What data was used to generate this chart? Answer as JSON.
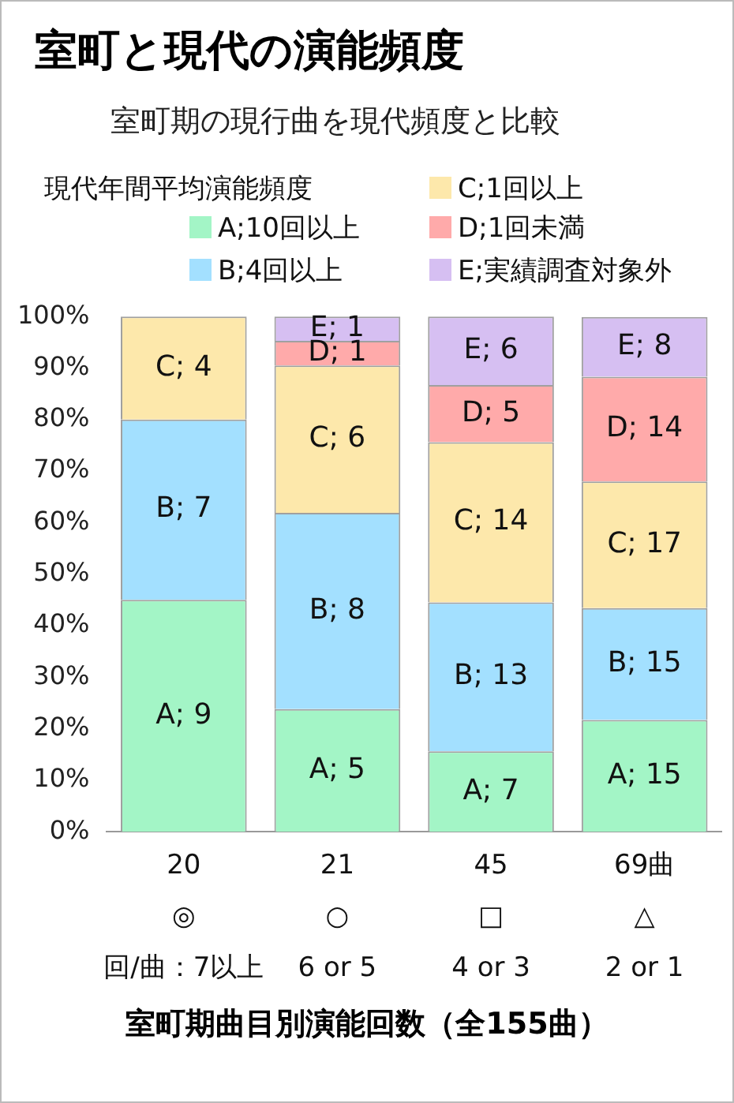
{
  "chart_data": {
    "type": "bar",
    "stacked": true,
    "title": "室町と現代の演能頻度",
    "subtitle": "室町期の現行曲を現代頻度と比較",
    "legend_title": "現代年間平均演能頻度",
    "legend": "top",
    "xlabel": "室町期曲目別演能回数（全155曲）",
    "grid": false,
    "categories": [
      "20\n◎\n回/曲：7以上",
      "21\n○\n6 or 5",
      "45\n□\n4 or 3",
      "69曲\n△\n2 or 1"
    ],
    "ylim": [
      0,
      100
    ],
    "yticks": [
      {
        "value": 0,
        "label": "0%"
      },
      {
        "value": 10,
        "label": "10%"
      },
      {
        "value": 20,
        "label": "20%"
      },
      {
        "value": 30,
        "label": "30%"
      },
      {
        "value": 40,
        "label": "40%"
      },
      {
        "value": 50,
        "label": "50%"
      },
      {
        "value": 60,
        "label": "60%"
      },
      {
        "value": 70,
        "label": "70%"
      },
      {
        "value": 80,
        "label": "80%"
      },
      {
        "value": 90,
        "label": "90%"
      },
      {
        "value": 100,
        "label": "100%"
      }
    ],
    "series": [
      {
        "name": "A;10回以上",
        "color": "#a3f5c6",
        "values": [
          45,
          23.8,
          15.6,
          21.7
        ]
      },
      {
        "name": "B;4回以上",
        "color": "#a3e0ff",
        "values": [
          35,
          38.1,
          28.9,
          21.7
        ]
      },
      {
        "name": "C;1回以上",
        "color": "#fde8ab",
        "values": [
          20,
          28.6,
          31.1,
          24.6
        ]
      },
      {
        "name": "D;1回未満",
        "color": "#ffaaaa",
        "values": [
          null,
          4.8,
          11.1,
          20.3
        ]
      },
      {
        "name": "E;実績調査対象外",
        "color": "#d6bff2",
        "values": [
          null,
          4.7,
          13.3,
          11.6
        ]
      }
    ],
    "annotations": [
      "A; 9",
      "B; 7",
      "C; 4",
      "A; 5",
      "B; 8",
      "C; 6",
      "D; 1",
      "E; 1",
      "A; 7",
      "B; 13",
      "C; 14",
      "D; 5",
      "E; 6",
      "A; 15",
      "B; 15",
      "C; 17",
      "D; 14",
      "E; 8"
    ]
  }
}
